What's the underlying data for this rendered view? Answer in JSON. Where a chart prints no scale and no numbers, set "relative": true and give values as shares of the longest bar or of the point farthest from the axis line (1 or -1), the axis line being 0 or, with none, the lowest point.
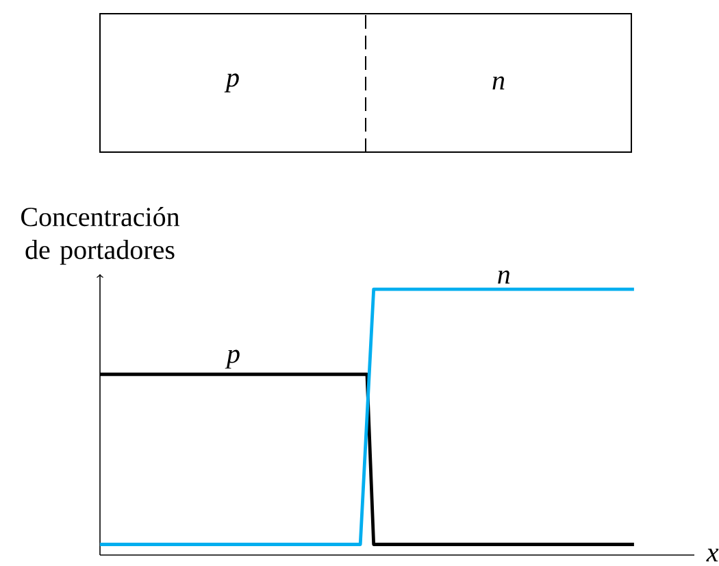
{
  "chart_data": {
    "type": "line",
    "xlabel": "x",
    "ylabel": "Concentración de portadores",
    "relative": true,
    "annotations": [
      "p",
      "n"
    ],
    "categories": [
      null,
      null,
      null,
      null,
      null,
      null,
      null,
      null,
      null,
      null,
      null,
      null,
      null,
      null,
      null,
      null,
      null,
      null,
      null,
      null,
      null,
      null,
      null,
      null,
      null,
      null,
      null,
      null,
      null,
      null,
      null,
      null,
      null,
      null,
      null,
      null,
      null,
      null,
      null,
      null,
      null,
      null,
      null,
      null,
      null,
      null,
      null,
      null,
      null,
      null,
      null,
      null,
      null,
      null,
      null,
      null,
      null,
      null,
      null,
      null,
      null,
      null,
      null,
      null,
      null,
      null,
      null,
      null,
      null,
      null,
      null,
      null,
      null,
      null,
      null,
      null,
      null,
      null,
      null,
      null,
      null
    ],
    "series": [
      {
        "name": "p",
        "color": "#000000",
        "values": [
          0.68,
          0.68,
          0.68,
          0.68,
          0.68,
          0.68,
          0.68,
          0.68,
          0.68,
          0.68,
          0.68,
          0.68,
          0.68,
          0.68,
          0.68,
          0.68,
          0.68,
          0.68,
          0.68,
          0.68,
          0.68,
          0.68,
          0.68,
          0.68,
          0.68,
          0.68,
          0.68,
          0.68,
          0.68,
          0.68,
          0.68,
          0.68,
          0.68,
          0.68,
          0.68,
          0.68,
          0.68,
          0.68,
          0.68,
          0.68,
          0.68,
          0.04,
          0.04,
          0.04,
          0.04,
          0.04,
          0.04,
          0.04,
          0.04,
          0.04,
          0.04,
          0.04,
          0.04,
          0.04,
          0.04,
          0.04,
          0.04,
          0.04,
          0.04,
          0.04,
          0.04,
          0.04,
          0.04,
          0.04,
          0.04,
          0.04,
          0.04,
          0.04,
          0.04,
          0.04,
          0.04,
          0.04,
          0.04,
          0.04,
          0.04,
          0.04,
          0.04,
          0.04,
          0.04,
          0.04,
          0.04
        ]
      },
      {
        "name": "n",
        "color": "#00aeef",
        "values": [
          0.04,
          0.04,
          0.04,
          0.04,
          0.04,
          0.04,
          0.04,
          0.04,
          0.04,
          0.04,
          0.04,
          0.04,
          0.04,
          0.04,
          0.04,
          0.04,
          0.04,
          0.04,
          0.04,
          0.04,
          0.04,
          0.04,
          0.04,
          0.04,
          0.04,
          0.04,
          0.04,
          0.04,
          0.04,
          0.04,
          0.04,
          0.04,
          0.04,
          0.04,
          0.04,
          0.04,
          0.04,
          0.04,
          0.04,
          0.04,
          0.52,
          1,
          1,
          1,
          1,
          1,
          1,
          1,
          1,
          1,
          1,
          1,
          1,
          1,
          1,
          1,
          1,
          1,
          1,
          1,
          1,
          1,
          1,
          1,
          1,
          1,
          1,
          1,
          1,
          1,
          1,
          1,
          1,
          1,
          1,
          1,
          1,
          1,
          1,
          1,
          1
        ]
      }
    ]
  }
}
